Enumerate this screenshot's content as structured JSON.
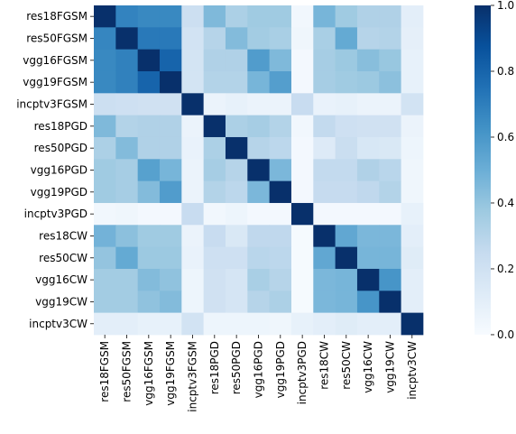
{
  "chart_data": {
    "type": "heatmap",
    "title": "",
    "xlabel": "",
    "ylabel": "",
    "labels": [
      "res18FGSM",
      "res50FGSM",
      "vgg16FGSM",
      "vgg19FGSM",
      "incptv3FGSM",
      "res18PGD",
      "res50PGD",
      "vgg16PGD",
      "vgg19PGD",
      "incptv3PGD",
      "res18CW",
      "res50CW",
      "vgg16CW",
      "vgg19CW",
      "incptv3CW"
    ],
    "values": [
      [
        1.0,
        0.68,
        0.66,
        0.66,
        0.22,
        0.45,
        0.33,
        0.37,
        0.37,
        0.03,
        0.47,
        0.37,
        0.32,
        0.32,
        0.1
      ],
      [
        0.67,
        1.0,
        0.72,
        0.72,
        0.19,
        0.3,
        0.44,
        0.36,
        0.34,
        0.04,
        0.34,
        0.52,
        0.3,
        0.31,
        0.09
      ],
      [
        0.66,
        0.69,
        1.0,
        0.8,
        0.18,
        0.32,
        0.32,
        0.58,
        0.45,
        0.02,
        0.35,
        0.38,
        0.43,
        0.39,
        0.08
      ],
      [
        0.66,
        0.69,
        0.8,
        1.0,
        0.18,
        0.31,
        0.31,
        0.47,
        0.57,
        0.02,
        0.35,
        0.37,
        0.38,
        0.42,
        0.08
      ],
      [
        0.22,
        0.21,
        0.2,
        0.2,
        1.0,
        0.06,
        0.08,
        0.06,
        0.06,
        0.24,
        0.07,
        0.08,
        0.06,
        0.06,
        0.19
      ],
      [
        0.45,
        0.31,
        0.32,
        0.32,
        0.06,
        1.0,
        0.33,
        0.35,
        0.31,
        0.03,
        0.26,
        0.21,
        0.2,
        0.2,
        0.06
      ],
      [
        0.33,
        0.44,
        0.32,
        0.32,
        0.07,
        0.33,
        1.0,
        0.3,
        0.28,
        0.02,
        0.13,
        0.23,
        0.16,
        0.15,
        0.05
      ],
      [
        0.37,
        0.35,
        0.56,
        0.47,
        0.06,
        0.35,
        0.3,
        1.0,
        0.46,
        0.02,
        0.26,
        0.26,
        0.32,
        0.29,
        0.04
      ],
      [
        0.37,
        0.35,
        0.44,
        0.58,
        0.06,
        0.31,
        0.28,
        0.46,
        1.0,
        0.02,
        0.25,
        0.25,
        0.27,
        0.31,
        0.04
      ],
      [
        0.03,
        0.04,
        0.02,
        0.02,
        0.24,
        0.03,
        0.05,
        0.02,
        0.02,
        1.0,
        0.02,
        0.02,
        0.02,
        0.02,
        0.08
      ],
      [
        0.48,
        0.42,
        0.37,
        0.37,
        0.06,
        0.24,
        0.15,
        0.27,
        0.27,
        0.01,
        1.0,
        0.53,
        0.46,
        0.46,
        0.1
      ],
      [
        0.4,
        0.52,
        0.38,
        0.38,
        0.07,
        0.21,
        0.21,
        0.29,
        0.28,
        0.01,
        0.53,
        1.0,
        0.47,
        0.47,
        0.12
      ],
      [
        0.36,
        0.36,
        0.44,
        0.41,
        0.05,
        0.2,
        0.17,
        0.34,
        0.3,
        0.01,
        0.46,
        0.47,
        1.0,
        0.61,
        0.1
      ],
      [
        0.36,
        0.36,
        0.41,
        0.44,
        0.05,
        0.2,
        0.17,
        0.3,
        0.33,
        0.01,
        0.46,
        0.47,
        0.61,
        1.0,
        0.1
      ],
      [
        0.1,
        0.1,
        0.08,
        0.08,
        0.19,
        0.05,
        0.05,
        0.05,
        0.04,
        0.08,
        0.1,
        0.12,
        0.1,
        0.1,
        1.0
      ]
    ],
    "colorbar": {
      "min": 0.0,
      "max": 1.0,
      "ticks": [
        "0.0",
        "0.2",
        "0.4",
        "0.6",
        "0.8",
        "1.0"
      ]
    },
    "colormap": [
      "#f7fbff",
      "#deebf7",
      "#c6dbef",
      "#9ecae1",
      "#6baed6",
      "#4292c6",
      "#2171b5",
      "#08519c",
      "#08306b"
    ]
  }
}
